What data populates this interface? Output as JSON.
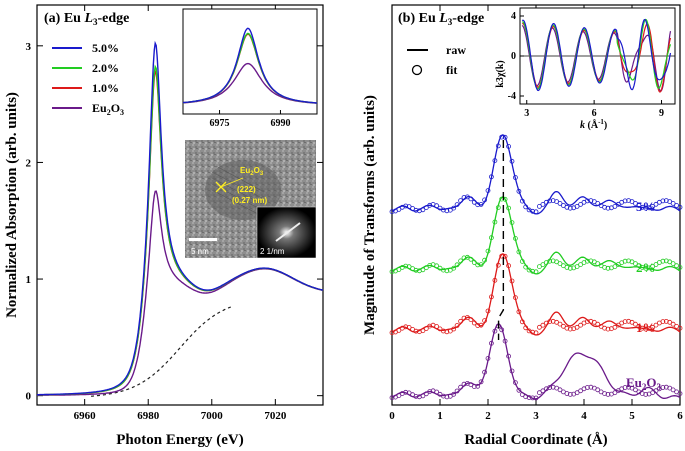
{
  "chart_data": [
    {
      "id": "a",
      "type": "line",
      "panel_label": "(a) Eu L3-edge",
      "panel_prefix": "(a) Eu ",
      "panel_L": "L",
      "panel_sub": "3",
      "panel_suffix": "-edge",
      "xlabel": "Photon Energy (eV)",
      "ylabel": "Normalized Absorption (arb. units)",
      "xlim": [
        6945,
        7035
      ],
      "ylim": [
        -0.08,
        3.35
      ],
      "xticks": [
        6960,
        6980,
        7000,
        7020
      ],
      "yticks": [
        0,
        1,
        2,
        3
      ],
      "legend": [
        {
          "name": "5.0%",
          "color": "#1a1acc"
        },
        {
          "name": "2.0%",
          "color": "#22cc22"
        },
        {
          "name": "1.0%",
          "color": "#dd1a1a"
        },
        {
          "name": "Eu2O3",
          "color": "#6a1a8a"
        }
      ],
      "legend_eu2o3": {
        "base": "Eu",
        "sub": "2",
        "mid": "O",
        "sub2": "3"
      },
      "series": [
        {
          "name": "5.0%",
          "color": "#1a1acc",
          "peak": 3.07
        },
        {
          "name": "2.0%",
          "color": "#22cc22",
          "peak": 2.87
        },
        {
          "name": "1.0%",
          "color": "#dd1a1a",
          "peak": 2.83
        },
        {
          "name": "Eu2O3",
          "color": "#6a1a8a",
          "peak": 1.8
        }
      ],
      "background": {
        "style": "dashed",
        "color": "#222222"
      },
      "inset": {
        "xticks": [
          6975,
          6990
        ],
        "xlim": [
          6966,
          6999
        ]
      },
      "tem_inset": {
        "phase_label": "Eu2O3",
        "phase_base": "Eu",
        "phase_sub": "2",
        "phase_mid": "O",
        "phase_sub2": "3",
        "plane": "(222)",
        "spacing": "(0.27 nm)",
        "scale_bar": "5 nm",
        "fft_scale": "2 1/nm"
      }
    },
    {
      "id": "b",
      "type": "line",
      "panel_label": "(b) Eu L3-edge",
      "panel_prefix": "(b) Eu ",
      "panel_L": "L",
      "panel_sub": "3",
      "panel_suffix": "-edge",
      "xlabel": "Radial Coordinate (Å)",
      "ylabel": "Magnitude of Transforms (arb. units)",
      "xlim": [
        0,
        6
      ],
      "xticks": [
        0,
        1,
        2,
        3,
        4,
        5,
        6
      ],
      "legend": [
        {
          "name": "raw",
          "style": "line"
        },
        {
          "name": "fit",
          "style": "circle"
        }
      ],
      "series": [
        {
          "name": "5%",
          "color": "#1a1acc"
        },
        {
          "name": "2%",
          "color": "#22cc22"
        },
        {
          "name": "1%",
          "color": "#dd1a1a"
        },
        {
          "name": "Eu2O3",
          "color": "#6a1a8a"
        }
      ],
      "series_eu2o3": {
        "base": "Eu",
        "sub": "2",
        "mid": "O",
        "sub2": "3"
      },
      "peak_positions": [
        2.32,
        2.32,
        2.32,
        2.22
      ],
      "inset": {
        "xlabel": "k (Å-1)",
        "xlabel_k": "k",
        "xlabel_unit": " (Å",
        "xlabel_sup": "-1",
        "xlabel_close": ")",
        "ylabel": "k3χ(k)",
        "xlim": [
          2.7,
          9.6
        ],
        "ylim": [
          -4.8,
          4.8
        ],
        "xticks": [
          3,
          6,
          9
        ],
        "yticks": [
          -4,
          0,
          4
        ]
      }
    }
  ]
}
